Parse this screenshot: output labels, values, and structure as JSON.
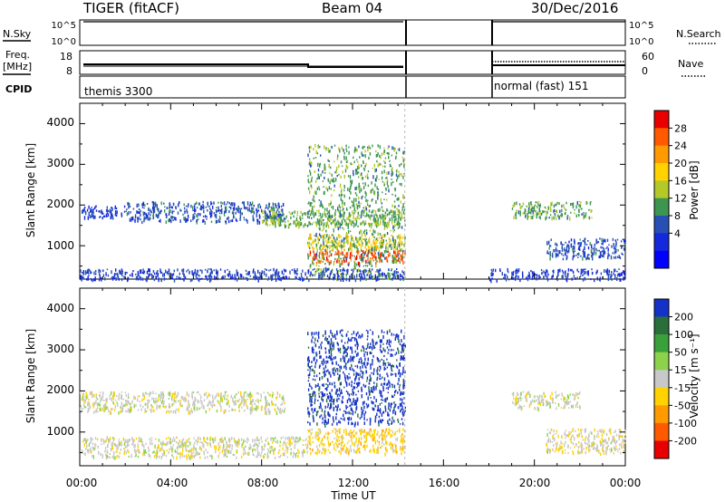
{
  "header": {
    "station": "TIGER (fitACF)",
    "beam": "Beam 04",
    "date": "30/Dec/2016"
  },
  "strips": {
    "nsky_label": "N.Sky",
    "nsky_ticks": [
      "10^5",
      "10^0"
    ],
    "nsearch_label": "N.Search",
    "nsearch_ticks": [
      "10^5",
      "10^0"
    ],
    "freq_label_1": "Freq.",
    "freq_label_2": "[MHz]",
    "freq_ticks": [
      "18",
      "8"
    ],
    "nave_label": "Nave",
    "nave_ticks": [
      "60",
      "0"
    ],
    "cpid_label": "CPID",
    "cpid_mode_1": "themis 3300",
    "cpid_mode_2": "normal (fast) 151"
  },
  "axes": {
    "ylabel": "Slant Range [km]",
    "yticks": [
      "4000",
      "3000",
      "2000",
      "1000"
    ],
    "xlabel": "Time UT",
    "xticks": [
      "00:00",
      "04:00",
      "08:00",
      "12:00",
      "16:00",
      "20:00",
      "00:00"
    ]
  },
  "colorbars": {
    "power": {
      "label": "Power [dB]",
      "ticks": [
        "28",
        "24",
        "20",
        "16",
        "12",
        "8",
        "4"
      ],
      "colors": [
        "#e80000",
        "#ff5a00",
        "#ff9a00",
        "#ffd200",
        "#b4c828",
        "#3c9650",
        "#2850b4",
        "#1428dc",
        "#0000ff"
      ]
    },
    "velocity": {
      "label": "Velocity [m s⁻¹]",
      "ticks": [
        "200",
        "100",
        "50",
        "15",
        "-15",
        "-50",
        "-100",
        "-200"
      ],
      "colors": [
        "#1432c8",
        "#2a6e3a",
        "#3aa03a",
        "#8cd24a",
        "#c8c8c8",
        "#ffd200",
        "#ff9a00",
        "#ff5a00",
        "#e80000"
      ]
    }
  },
  "chart_data": [
    {
      "type": "heatmap",
      "title": "Power",
      "xlabel": "Time UT",
      "ylabel": "Slant Range [km]",
      "xlim": [
        "00:00",
        "24:00"
      ],
      "ylim": [
        180,
        4500
      ],
      "colorbar_label": "Power [dB]",
      "colorbar_range": [
        0,
        30
      ],
      "data_gap_hours": [
        14.3,
        18.0
      ],
      "echo_regions": [
        {
          "t_start": 0.0,
          "t_end": 2.0,
          "r_min": 1700,
          "r_max": 2000,
          "value": 6
        },
        {
          "t_start": 2.0,
          "t_end": 9.0,
          "r_min": 1600,
          "r_max": 2100,
          "value": 8
        },
        {
          "t_start": 8.0,
          "t_end": 14.3,
          "r_min": 1500,
          "r_max": 1900,
          "value": 13
        },
        {
          "t_start": 10.0,
          "t_end": 14.3,
          "r_min": 600,
          "r_max": 900,
          "value": 26
        },
        {
          "t_start": 10.0,
          "t_end": 14.3,
          "r_min": 900,
          "r_max": 1300,
          "value": 18
        },
        {
          "t_start": 10.0,
          "t_end": 14.3,
          "r_min": 200,
          "r_max": 3500,
          "value": 12
        },
        {
          "t_start": 0.0,
          "t_end": 14.3,
          "r_min": 180,
          "r_max": 450,
          "value": 7
        },
        {
          "t_start": 19.0,
          "t_end": 22.5,
          "r_min": 1700,
          "r_max": 2100,
          "value": 12
        },
        {
          "t_start": 20.5,
          "t_end": 24.0,
          "r_min": 700,
          "r_max": 1200,
          "value": 8
        },
        {
          "t_start": 18.0,
          "t_end": 24.0,
          "r_min": 180,
          "r_max": 450,
          "value": 6
        }
      ]
    },
    {
      "type": "heatmap",
      "title": "Velocity",
      "xlabel": "Time UT",
      "ylabel": "Slant Range [km]",
      "xlim": [
        "00:00",
        "24:00"
      ],
      "ylim": [
        180,
        4500
      ],
      "colorbar_label": "Velocity [m s⁻¹]",
      "colorbar_range": [
        -200,
        200
      ],
      "data_gap_hours": [
        14.3,
        18.0
      ],
      "echo_regions": [
        {
          "t_start": 0.0,
          "t_end": 9.0,
          "r_min": 1500,
          "r_max": 2000,
          "value": 0
        },
        {
          "t_start": 0.0,
          "t_end": 10.0,
          "r_min": 400,
          "r_max": 900,
          "value": 0
        },
        {
          "t_start": 10.0,
          "t_end": 14.3,
          "r_min": 1200,
          "r_max": 3500,
          "value": 180
        },
        {
          "t_start": 10.0,
          "t_end": 14.3,
          "r_min": 500,
          "r_max": 1100,
          "value": -40
        },
        {
          "t_start": 19.0,
          "t_end": 22.0,
          "r_min": 1600,
          "r_max": 2000,
          "value": 0
        },
        {
          "t_start": 20.5,
          "t_end": 24.0,
          "r_min": 500,
          "r_max": 1100,
          "value": -10
        }
      ]
    }
  ]
}
